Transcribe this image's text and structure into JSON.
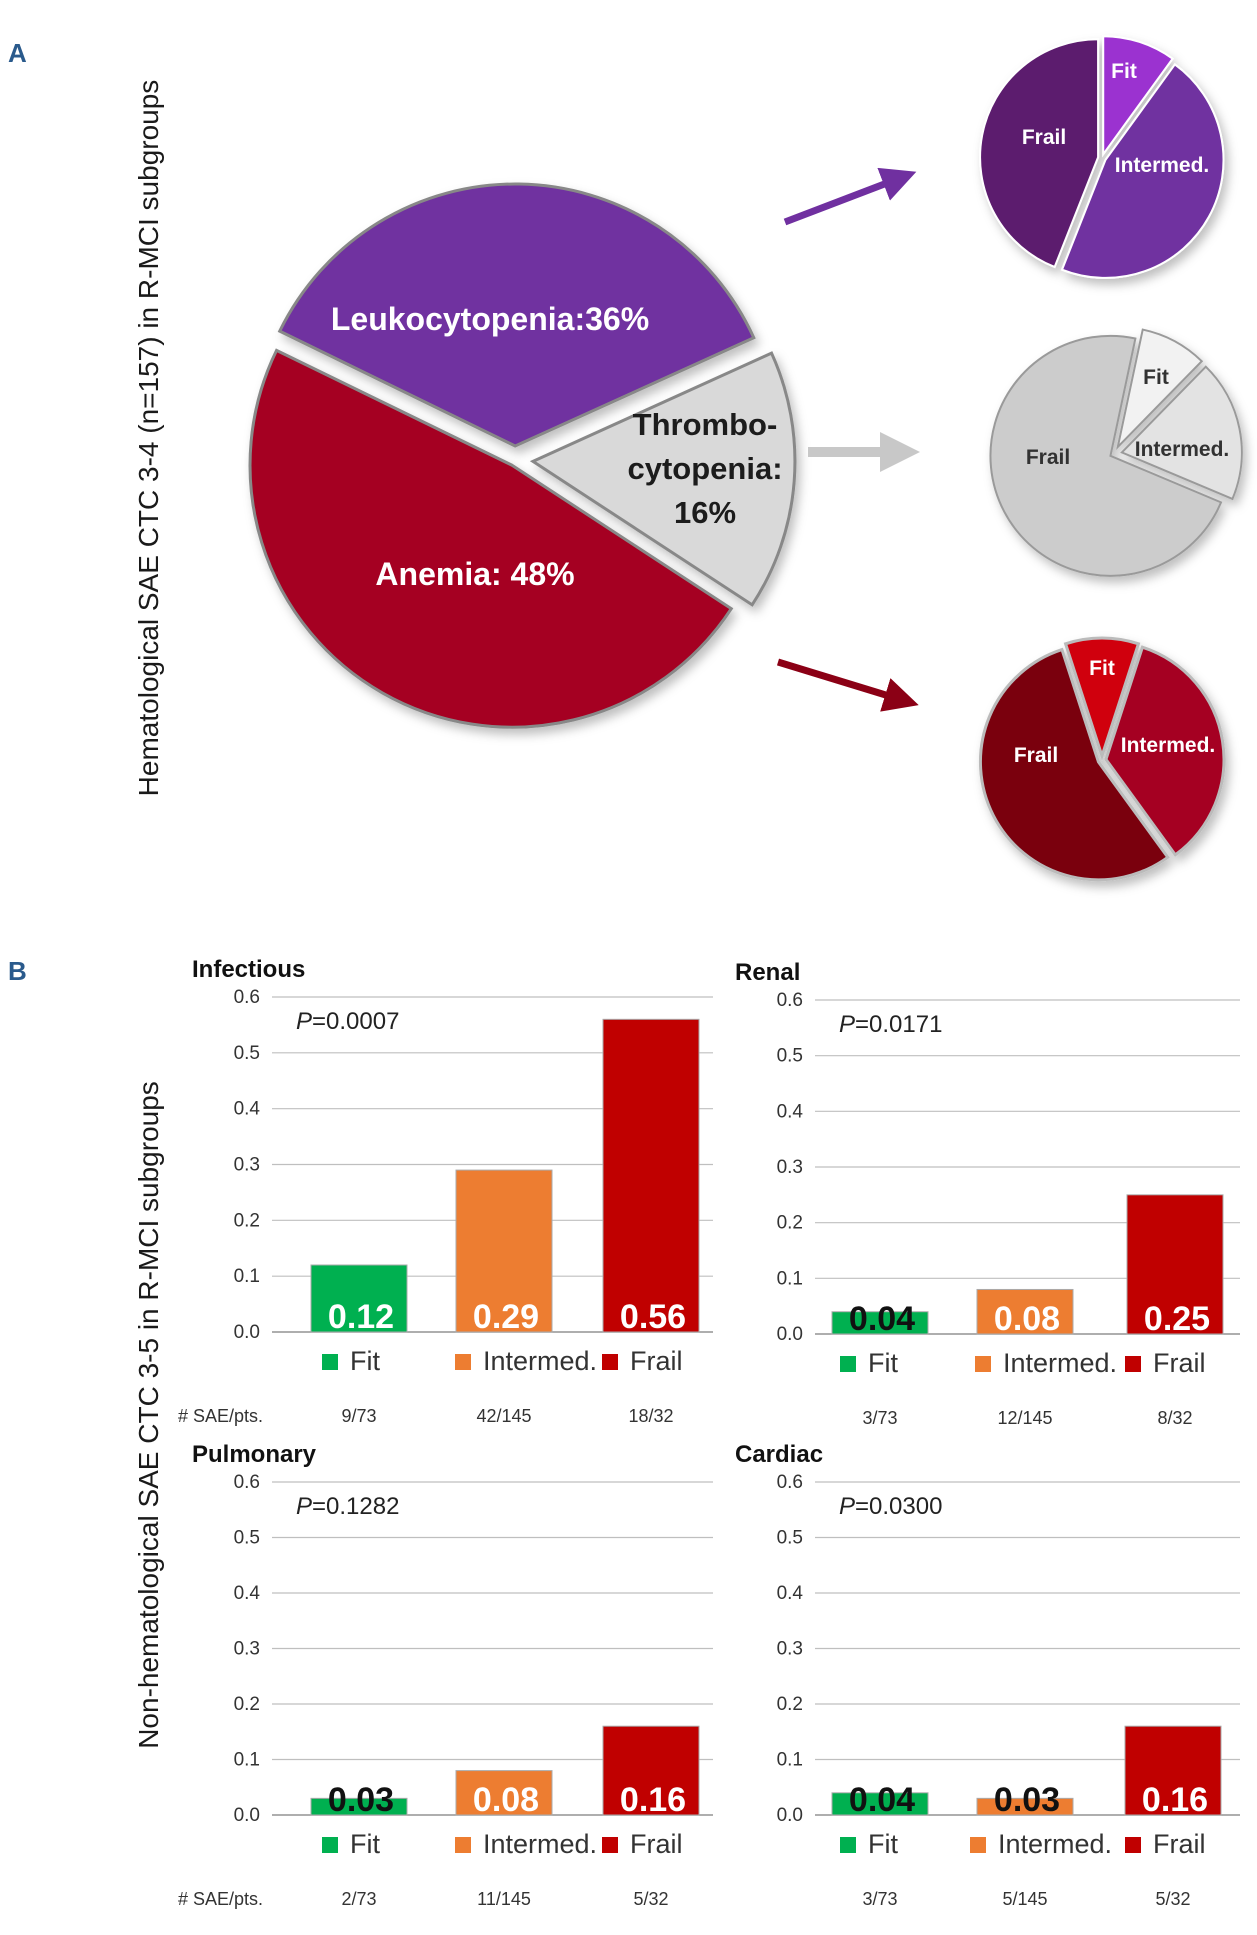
{
  "panel_a_letter": "A",
  "panel_b_letter": "B",
  "panel_a_ylabel": "Hematological SAE CTC 3-4 (n=157) in  R-MCI subgroups",
  "panel_b_ylabel": "Non-hematological SAE CTC 3-5 in R-MCI subgroups",
  "colors": {
    "leuko": "#7030a0",
    "leuko_light": "#9b30d0",
    "thrombo": "#d9d9d9",
    "anemia": "#a50021",
    "anemia_dark": "#7a0010",
    "anemia_fit": "#d00010",
    "fit_bar": "#00b050",
    "intermed_bar": "#ed7d31",
    "frail_bar": "#c00000"
  },
  "chart_data": [
    {
      "type": "pie",
      "id": "hematological-overall",
      "slices": [
        {
          "label_lines": [
            "Leukocytopenia:36%"
          ],
          "value": 36
        },
        {
          "label_lines": [
            "Thrombo-",
            "cytopenia:",
            "16%"
          ],
          "value": 16
        },
        {
          "label_lines": [
            "Anemia: 48%"
          ],
          "value": 48
        }
      ]
    },
    {
      "type": "pie",
      "id": "leukocytopenia-subgroups",
      "slices": [
        {
          "label": "Fit",
          "value": 10
        },
        {
          "label": "Intermed.",
          "value": 46
        },
        {
          "label": "Frail",
          "value": 44
        }
      ]
    },
    {
      "type": "pie",
      "id": "thrombocytopenia-subgroups",
      "slices": [
        {
          "label": "Fit",
          "value": 9
        },
        {
          "label": "Intermed.",
          "value": 19
        },
        {
          "label": "Frail",
          "value": 72
        }
      ]
    },
    {
      "type": "pie",
      "id": "anemia-subgroups",
      "slices": [
        {
          "label": "Fit",
          "value": 10
        },
        {
          "label": "Intermed.",
          "value": 35
        },
        {
          "label": "Frail",
          "value": 55
        }
      ]
    },
    {
      "type": "bar",
      "id": "infectious",
      "title": "Infectious",
      "pvalue_prefix": "P",
      "pvalue_text": "=0.0007",
      "categories": [
        "Fit",
        "Intermed.",
        "Frail"
      ],
      "values": [
        0.12,
        0.29,
        0.56
      ],
      "value_labels": [
        "0.12",
        "0.29",
        "0.56"
      ],
      "sae_label": "# SAE/pts.",
      "sae_values": [
        "9/73",
        "42/145",
        "18/32"
      ],
      "ylim": [
        0,
        0.6
      ],
      "yticks": [
        "0.0",
        "0.1",
        "0.2",
        "0.3",
        "0.4",
        "0.5",
        "0.6"
      ]
    },
    {
      "type": "bar",
      "id": "renal",
      "title": "Renal",
      "pvalue_prefix": "P",
      "pvalue_text": "=0.0171",
      "categories": [
        "Fit",
        "Intermed.",
        "Frail"
      ],
      "values": [
        0.04,
        0.08,
        0.25
      ],
      "value_labels": [
        "0.04",
        "0.08",
        "0.25"
      ],
      "sae_label": "",
      "sae_values": [
        "3/73",
        "12/145",
        "8/32"
      ],
      "ylim": [
        0,
        0.6
      ],
      "yticks": [
        "0.0",
        "0.1",
        "0.2",
        "0.3",
        "0.4",
        "0.5",
        "0.6"
      ]
    },
    {
      "type": "bar",
      "id": "pulmonary",
      "title": "Pulmonary",
      "pvalue_prefix": "P",
      "pvalue_text": "=0.1282",
      "categories": [
        "Fit",
        "Intermed.",
        "Frail"
      ],
      "values": [
        0.03,
        0.08,
        0.16
      ],
      "value_labels": [
        "0.03",
        "0.08",
        "0.16"
      ],
      "sae_label": "# SAE/pts.",
      "sae_values": [
        "2/73",
        "11/145",
        "5/32"
      ],
      "ylim": [
        0,
        0.6
      ],
      "yticks": [
        "0.0",
        "0.1",
        "0.2",
        "0.3",
        "0.4",
        "0.5",
        "0.6"
      ]
    },
    {
      "type": "bar",
      "id": "cardiac",
      "title": "Cardiac",
      "pvalue_prefix": "P",
      "pvalue_text": "=0.0300",
      "categories": [
        "Fit",
        "Intermed.",
        "Frail"
      ],
      "values": [
        0.04,
        0.03,
        0.16
      ],
      "value_labels": [
        "0.04",
        "0.03",
        "0.16"
      ],
      "sae_label": "",
      "sae_values": [
        "3/73",
        "5/145",
        "5/32"
      ],
      "ylim": [
        0,
        0.6
      ],
      "yticks": [
        "0.0",
        "0.1",
        "0.2",
        "0.3",
        "0.4",
        "0.5",
        "0.6"
      ]
    }
  ]
}
